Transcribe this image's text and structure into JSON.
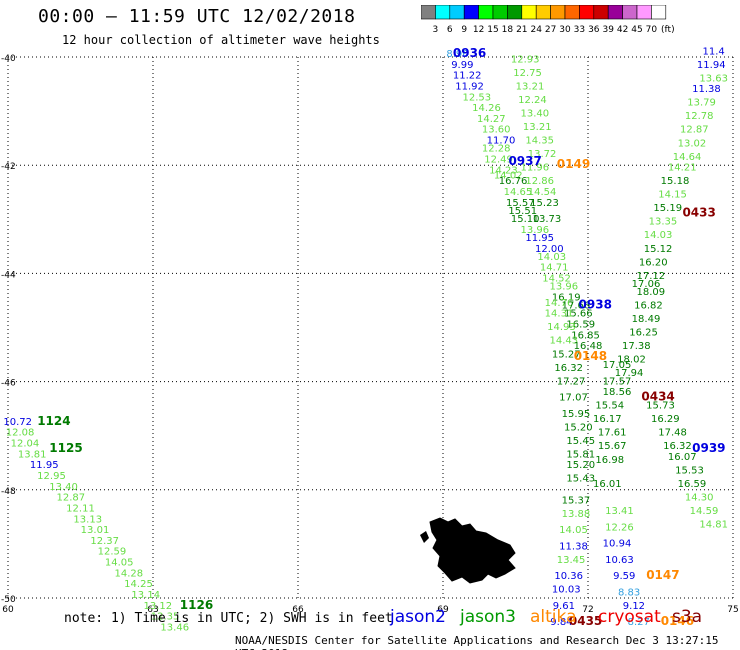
{
  "header": {
    "title": "00:00 – 11:59 UTC 12/02/2018",
    "subtitle": "12 hour collection of altimeter wave heights"
  },
  "colorbar": {
    "labels": [
      "3",
      "6",
      "9",
      "12",
      "15",
      "18",
      "21",
      "24",
      "27",
      "30",
      "33",
      "36",
      "39",
      "42",
      "45",
      "70"
    ],
    "unit": "(ft)",
    "colors": [
      "#808080",
      "#00ffff",
      "#00ccff",
      "#0000ff",
      "#00ff00",
      "#00cc00",
      "#009900",
      "#ffff00",
      "#ffcc00",
      "#ff9900",
      "#ff6600",
      "#ff0000",
      "#cc0000",
      "#990099",
      "#cc66cc",
      "#ff99ff",
      "#ffffff"
    ]
  },
  "axes": {
    "lat_labels": [
      "-40",
      "-42",
      "-44",
      "-46",
      "-48",
      "-50"
    ],
    "lon_labels": [
      "60",
      "63",
      "66",
      "69",
      "72",
      "75"
    ]
  },
  "colors": {
    "light_blue": "#33a0e0",
    "blue": "#0000e0",
    "light_green": "#66dd44",
    "dark_green": "#007a00",
    "orange": "#ff8800",
    "dark_red": "#880000",
    "red": "#ee0000"
  },
  "observations": [
    {
      "t": "8.96",
      "c": "light_blue",
      "lon": 69.3,
      "lat": -40.0
    },
    {
      "t": "9.99",
      "c": "blue",
      "lon": 69.4,
      "lat": -40.2
    },
    {
      "t": "11.22",
      "c": "blue",
      "lon": 69.5,
      "lat": -40.4
    },
    {
      "t": "11.92",
      "c": "blue",
      "lon": 69.55,
      "lat": -40.6
    },
    {
      "t": "12.53",
      "c": "light_green",
      "lon": 69.7,
      "lat": -40.8
    },
    {
      "t": "14.26",
      "c": "light_green",
      "lon": 69.9,
      "lat": -41.0
    },
    {
      "t": "14.27",
      "c": "light_green",
      "lon": 70.0,
      "lat": -41.2
    },
    {
      "t": "13.60",
      "c": "light_green",
      "lon": 70.1,
      "lat": -41.4
    },
    {
      "t": "11.70",
      "c": "blue",
      "lon": 70.2,
      "lat": -41.6
    },
    {
      "t": "12.28",
      "c": "light_green",
      "lon": 70.1,
      "lat": -41.75
    },
    {
      "t": "12.49",
      "c": "light_green",
      "lon": 70.15,
      "lat": -41.95
    },
    {
      "t": "14.23",
      "c": "light_green",
      "lon": 70.25,
      "lat": -42.15
    },
    {
      "t": "14.02",
      "c": "light_green",
      "lon": 70.35,
      "lat": -42.25
    },
    {
      "t": "12.93",
      "c": "light_green",
      "lon": 70.7,
      "lat": -40.1
    },
    {
      "t": "12.75",
      "c": "light_green",
      "lon": 70.75,
      "lat": -40.35
    },
    {
      "t": "13.21",
      "c": "light_green",
      "lon": 70.8,
      "lat": -40.6
    },
    {
      "t": "12.24",
      "c": "light_green",
      "lon": 70.85,
      "lat": -40.85
    },
    {
      "t": "13.40",
      "c": "light_green",
      "lon": 70.9,
      "lat": -41.1
    },
    {
      "t": "13.21",
      "c": "light_green",
      "lon": 70.95,
      "lat": -41.35
    },
    {
      "t": "14.35",
      "c": "light_green",
      "lon": 71.0,
      "lat": -41.6
    },
    {
      "t": "13.72",
      "c": "light_green",
      "lon": 71.05,
      "lat": -41.85
    },
    {
      "t": "11.96",
      "c": "light_green",
      "lon": 70.9,
      "lat": -42.1
    },
    {
      "t": "12.86",
      "c": "light_green",
      "lon": 71.0,
      "lat": -42.35
    },
    {
      "t": "16.76",
      "c": "dark_green",
      "lon": 70.45,
      "lat": -42.35
    },
    {
      "t": "14.65",
      "c": "light_green",
      "lon": 70.55,
      "lat": -42.55
    },
    {
      "t": "15.57",
      "c": "dark_green",
      "lon": 70.6,
      "lat": -42.75
    },
    {
      "t": "14.54",
      "c": "light_green",
      "lon": 71.05,
      "lat": -42.55
    },
    {
      "t": "15.23",
      "c": "dark_green",
      "lon": 71.1,
      "lat": -42.75
    },
    {
      "t": "15.51",
      "c": "dark_green",
      "lon": 70.65,
      "lat": -42.9
    },
    {
      "t": "15.10",
      "c": "dark_green",
      "lon": 70.7,
      "lat": -43.05
    },
    {
      "t": "13.73",
      "c": "dark_green",
      "lon": 71.15,
      "lat": -43.05
    },
    {
      "t": "13.96",
      "c": "light_green",
      "lon": 70.9,
      "lat": -43.25
    },
    {
      "t": "11.95",
      "c": "blue",
      "lon": 71.0,
      "lat": -43.4
    },
    {
      "t": "12.00",
      "c": "blue",
      "lon": 71.2,
      "lat": -43.6
    },
    {
      "t": "14.03",
      "c": "light_green",
      "lon": 71.25,
      "lat": -43.75
    },
    {
      "t": "14.71",
      "c": "light_green",
      "lon": 71.3,
      "lat": -43.95
    },
    {
      "t": "14.52",
      "c": "light_green",
      "lon": 71.35,
      "lat": -44.15
    },
    {
      "t": "13.96",
      "c": "light_green",
      "lon": 71.5,
      "lat": -44.3
    },
    {
      "t": "16.19",
      "c": "dark_green",
      "lon": 71.55,
      "lat": -44.5
    },
    {
      "t": "14.76",
      "c": "light_green",
      "lon": 71.4,
      "lat": -44.6
    },
    {
      "t": "17.66",
      "c": "dark_green",
      "lon": 71.75,
      "lat": -44.65
    },
    {
      "t": "15.66",
      "c": "dark_green",
      "lon": 71.8,
      "lat": -44.8
    },
    {
      "t": "14.31",
      "c": "light_green",
      "lon": 71.4,
      "lat": -44.8
    },
    {
      "t": "16.59",
      "c": "dark_green",
      "lon": 71.85,
      "lat": -45.0
    },
    {
      "t": "14.93",
      "c": "light_green",
      "lon": 71.45,
      "lat": -45.05
    },
    {
      "t": "16.85",
      "c": "dark_green",
      "lon": 71.95,
      "lat": -45.2
    },
    {
      "t": "14.43",
      "c": "light_green",
      "lon": 71.5,
      "lat": -45.3
    },
    {
      "t": "16.48",
      "c": "dark_green",
      "lon": 72.0,
      "lat": -45.4
    },
    {
      "t": "15.27",
      "c": "dark_green",
      "lon": 71.55,
      "lat": -45.55
    },
    {
      "t": "16.32",
      "c": "dark_green",
      "lon": 71.6,
      "lat": -45.8
    },
    {
      "t": "17.27",
      "c": "dark_green",
      "lon": 71.65,
      "lat": -46.05
    },
    {
      "t": "17.07",
      "c": "dark_green",
      "lon": 71.7,
      "lat": -46.35
    },
    {
      "t": "15.95",
      "c": "dark_green",
      "lon": 71.75,
      "lat": -46.65
    },
    {
      "t": "15.20",
      "c": "dark_green",
      "lon": 71.8,
      "lat": -46.9
    },
    {
      "t": "15.45",
      "c": "dark_green",
      "lon": 71.85,
      "lat": -47.15
    },
    {
      "t": "15.81",
      "c": "dark_green",
      "lon": 71.85,
      "lat": -47.4
    },
    {
      "t": "15.20",
      "c": "dark_green",
      "lon": 71.85,
      "lat": -47.6
    },
    {
      "t": "15.43",
      "c": "dark_green",
      "lon": 71.85,
      "lat": -47.85
    },
    {
      "t": "15.37",
      "c": "dark_green",
      "lon": 71.75,
      "lat": -48.25
    },
    {
      "t": "13.88",
      "c": "light_green",
      "lon": 71.75,
      "lat": -48.5
    },
    {
      "t": "14.05",
      "c": "light_green",
      "lon": 71.7,
      "lat": -48.8
    },
    {
      "t": "11.38",
      "c": "blue",
      "lon": 71.7,
      "lat": -49.1
    },
    {
      "t": "13.45",
      "c": "light_green",
      "lon": 71.65,
      "lat": -49.35
    },
    {
      "t": "10.36",
      "c": "blue",
      "lon": 71.6,
      "lat": -49.65
    },
    {
      "t": "10.03",
      "c": "blue",
      "lon": 71.55,
      "lat": -49.9
    },
    {
      "t": "9.61",
      "c": "blue",
      "lon": 71.5,
      "lat": -50.2
    },
    {
      "t": "9.84",
      "c": "blue",
      "lon": 71.45,
      "lat": -50.5
    },
    {
      "t": "18.09",
      "c": "dark_green",
      "lon": 73.3,
      "lat": -44.4
    },
    {
      "t": "16.82",
      "c": "dark_green",
      "lon": 73.25,
      "lat": -44.65
    },
    {
      "t": "18.49",
      "c": "dark_green",
      "lon": 73.2,
      "lat": -44.9
    },
    {
      "t": "16.25",
      "c": "dark_green",
      "lon": 73.15,
      "lat": -45.15
    },
    {
      "t": "17.38",
      "c": "dark_green",
      "lon": 73.0,
      "lat": -45.4
    },
    {
      "t": "18.02",
      "c": "dark_green",
      "lon": 72.9,
      "lat": -45.65
    },
    {
      "t": "17.05",
      "c": "dark_green",
      "lon": 72.6,
      "lat": -45.75
    },
    {
      "t": "17.94",
      "c": "dark_green",
      "lon": 72.85,
      "lat": -45.9
    },
    {
      "t": "17.57",
      "c": "dark_green",
      "lon": 72.6,
      "lat": -46.05
    },
    {
      "t": "18.56",
      "c": "dark_green",
      "lon": 72.6,
      "lat": -46.25
    },
    {
      "t": "15.54",
      "c": "dark_green",
      "lon": 72.45,
      "lat": -46.5
    },
    {
      "t": "16.17",
      "c": "dark_green",
      "lon": 72.4,
      "lat": -46.75
    },
    {
      "t": "17.61",
      "c": "dark_green",
      "lon": 72.5,
      "lat": -47.0
    },
    {
      "t": "15.67",
      "c": "dark_green",
      "lon": 72.5,
      "lat": -47.25
    },
    {
      "t": "16.98",
      "c": "dark_green",
      "lon": 72.45,
      "lat": -47.5
    },
    {
      "t": "16.01",
      "c": "dark_green",
      "lon": 72.4,
      "lat": -47.95
    },
    {
      "t": "13.41",
      "c": "light_green",
      "lon": 72.65,
      "lat": -48.45
    },
    {
      "t": "12.26",
      "c": "light_green",
      "lon": 72.65,
      "lat": -48.75
    },
    {
      "t": "10.94",
      "c": "blue",
      "lon": 72.6,
      "lat": -49.05
    },
    {
      "t": "10.63",
      "c": "blue",
      "lon": 72.65,
      "lat": -49.35
    },
    {
      "t": "9.59",
      "c": "blue",
      "lon": 72.75,
      "lat": -49.65
    },
    {
      "t": "8.83",
      "c": "light_blue",
      "lon": 72.85,
      "lat": -49.95
    },
    {
      "t": "9.12",
      "c": "blue",
      "lon": 72.95,
      "lat": -50.2
    },
    {
      "t": "8.27",
      "c": "light_blue",
      "lon": 73.05,
      "lat": -50.5
    },
    {
      "t": "15.73",
      "c": "dark_green",
      "lon": 73.5,
      "lat": -46.5
    },
    {
      "t": "16.29",
      "c": "dark_green",
      "lon": 73.6,
      "lat": -46.75
    },
    {
      "t": "17.48",
      "c": "dark_green",
      "lon": 73.75,
      "lat": -47.0
    },
    {
      "t": "16.32",
      "c": "dark_green",
      "lon": 73.85,
      "lat": -47.25
    },
    {
      "t": "16.07",
      "c": "dark_green",
      "lon": 73.95,
      "lat": -47.45
    },
    {
      "t": "15.53",
      "c": "dark_green",
      "lon": 74.1,
      "lat": -47.7
    },
    {
      "t": "16.59",
      "c": "dark_green",
      "lon": 74.15,
      "lat": -47.95
    },
    {
      "t": "14.30",
      "c": "light_green",
      "lon": 74.3,
      "lat": -48.2
    },
    {
      "t": "14.59",
      "c": "light_green",
      "lon": 74.4,
      "lat": -48.45
    },
    {
      "t": "14.81",
      "c": "light_green",
      "lon": 74.6,
      "lat": -48.7
    },
    {
      "t": "11.4",
      "c": "blue",
      "lon": 74.6,
      "lat": -39.95
    },
    {
      "t": "11.94",
      "c": "blue",
      "lon": 74.55,
      "lat": -40.2
    },
    {
      "t": "13.63",
      "c": "light_green",
      "lon": 74.6,
      "lat": -40.45
    },
    {
      "t": "11.38",
      "c": "blue",
      "lon": 74.45,
      "lat": -40.65
    },
    {
      "t": "13.79",
      "c": "light_green",
      "lon": 74.35,
      "lat": -40.9
    },
    {
      "t": "12.78",
      "c": "light_green",
      "lon": 74.3,
      "lat": -41.15
    },
    {
      "t": "12.87",
      "c": "light_green",
      "lon": 74.2,
      "lat": -41.4
    },
    {
      "t": "13.02",
      "c": "light_green",
      "lon": 74.15,
      "lat": -41.65
    },
    {
      "t": "14.64",
      "c": "light_green",
      "lon": 74.05,
      "lat": -41.9
    },
    {
      "t": "14.21",
      "c": "light_green",
      "lon": 73.95,
      "lat": -42.1
    },
    {
      "t": "15.18",
      "c": "dark_green",
      "lon": 73.8,
      "lat": -42.35
    },
    {
      "t": "14.15",
      "c": "light_green",
      "lon": 73.75,
      "lat": -42.6
    },
    {
      "t": "15.19",
      "c": "dark_green",
      "lon": 73.65,
      "lat": -42.85
    },
    {
      "t": "13.35",
      "c": "light_green",
      "lon": 73.55,
      "lat": -43.1
    },
    {
      "t": "14.03",
      "c": "light_green",
      "lon": 73.45,
      "lat": -43.35
    },
    {
      "t": "15.12",
      "c": "dark_green",
      "lon": 73.45,
      "lat": -43.6
    },
    {
      "t": "16.20",
      "c": "dark_green",
      "lon": 73.35,
      "lat": -43.85
    },
    {
      "t": "17.12",
      "c": "dark_green",
      "lon": 73.3,
      "lat": -44.1
    },
    {
      "t": "17.06",
      "c": "dark_green",
      "lon": 73.2,
      "lat": -44.25
    },
    {
      "t": "10.72",
      "c": "blue",
      "lon": 60.2,
      "lat": -46.8
    },
    {
      "t": "12.08",
      "c": "light_green",
      "lon": 60.25,
      "lat": -47.0
    },
    {
      "t": "12.04",
      "c": "light_green",
      "lon": 60.35,
      "lat": -47.2
    },
    {
      "t": "13.81",
      "c": "light_green",
      "lon": 60.5,
      "lat": -47.4
    },
    {
      "t": "11.95",
      "c": "blue",
      "lon": 60.75,
      "lat": -47.6
    },
    {
      "t": "12.95",
      "c": "light_green",
      "lon": 60.9,
      "lat": -47.8
    },
    {
      "t": "13.40",
      "c": "light_green",
      "lon": 61.15,
      "lat": -48.0
    },
    {
      "t": "12.87",
      "c": "light_green",
      "lon": 61.3,
      "lat": -48.2
    },
    {
      "t": "12.11",
      "c": "light_green",
      "lon": 61.5,
      "lat": -48.4
    },
    {
      "t": "13.13",
      "c": "light_green",
      "lon": 61.65,
      "lat": -48.6
    },
    {
      "t": "13.01",
      "c": "light_green",
      "lon": 61.8,
      "lat": -48.8
    },
    {
      "t": "12.37",
      "c": "light_green",
      "lon": 62.0,
      "lat": -49.0
    },
    {
      "t": "12.59",
      "c": "light_green",
      "lon": 62.15,
      "lat": -49.2
    },
    {
      "t": "14.05",
      "c": "light_green",
      "lon": 62.3,
      "lat": -49.4
    },
    {
      "t": "14.28",
      "c": "light_green",
      "lon": 62.5,
      "lat": -49.6
    },
    {
      "t": "14.25",
      "c": "light_green",
      "lon": 62.7,
      "lat": -49.8
    },
    {
      "t": "13.14",
      "c": "light_green",
      "lon": 62.85,
      "lat": -50.0
    },
    {
      "t": "13.12",
      "c": "light_green",
      "lon": 63.1,
      "lat": -50.2
    },
    {
      "t": "12.35",
      "c": "light_green",
      "lon": 63.25,
      "lat": -50.4
    },
    {
      "t": "13.46",
      "c": "light_green",
      "lon": 63.45,
      "lat": -50.6
    }
  ],
  "pass_times": [
    {
      "t": "0936",
      "c": "blue",
      "lon": 69.55,
      "lat": -40.0
    },
    {
      "t": "0937",
      "c": "blue",
      "lon": 70.7,
      "lat": -42.0
    },
    {
      "t": "0149",
      "c": "orange",
      "lon": 71.7,
      "lat": -42.05
    },
    {
      "t": "0433",
      "c": "dark_red",
      "lon": 74.3,
      "lat": -42.95
    },
    {
      "t": "0938",
      "c": "blue",
      "lon": 72.15,
      "lat": -44.65
    },
    {
      "t": "0148",
      "c": "orange",
      "lon": 72.05,
      "lat": -45.6
    },
    {
      "t": "0434",
      "c": "dark_red",
      "lon": 73.45,
      "lat": -46.35
    },
    {
      "t": "0939",
      "c": "blue",
      "lon": 74.5,
      "lat": -47.3
    },
    {
      "t": "0147",
      "c": "orange",
      "lon": 73.55,
      "lat": -49.65
    },
    {
      "t": "0435",
      "c": "dark_red",
      "lon": 71.95,
      "lat": -50.5
    },
    {
      "t": "0146",
      "c": "orange",
      "lon": 73.85,
      "lat": -50.5
    },
    {
      "t": "1124",
      "c": "dark_green",
      "lon": 60.95,
      "lat": -46.8
    },
    {
      "t": "1125",
      "c": "dark_green",
      "lon": 61.2,
      "lat": -47.3
    },
    {
      "t": "1126",
      "c": "dark_green",
      "lon": 63.9,
      "lat": -50.2
    }
  ],
  "legend": {
    "note": "note: 1) Time is in UTC; 2) SWH is in feet",
    "satellites": [
      {
        "name": "jason2",
        "color": "#0000e0"
      },
      {
        "name": "jason3",
        "color": "#009900"
      },
      {
        "name": "altika",
        "color": "#ff8800"
      },
      {
        "name": "cryosat",
        "color": "#ee0000"
      },
      {
        "name": "s3a",
        "color": "#880000"
      }
    ]
  },
  "footer": "NOAA/NESDIS Center for Satellite Applications and Research   Dec  3 13:27:15 UTC 2018"
}
